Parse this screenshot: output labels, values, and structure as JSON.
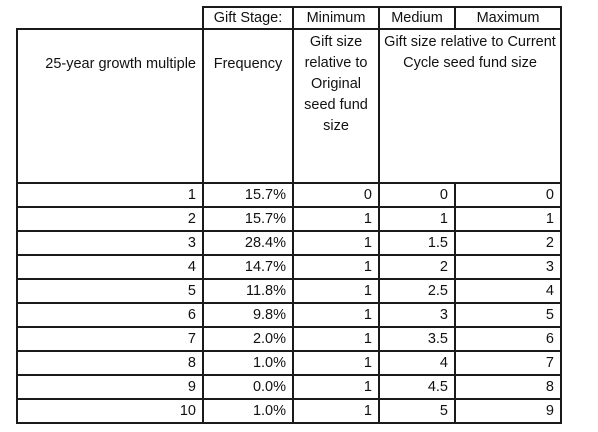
{
  "header": {
    "gift_stage": "Gift Stage:",
    "minimum": "Minimum",
    "medium": "Medium",
    "maximum": "Maximum",
    "col_multiple": "25-year growth multiple",
    "col_frequency": "Frequency",
    "col_min_desc": "Gift size relative to Original seed fund size",
    "col_medmax_desc": "Gift size relative to Current Cycle seed fund size"
  },
  "rows": [
    {
      "multiple": "1",
      "frequency": "15.7%",
      "min": "0",
      "med": "0",
      "max": "0"
    },
    {
      "multiple": "2",
      "frequency": "15.7%",
      "min": "1",
      "med": "1",
      "max": "1"
    },
    {
      "multiple": "3",
      "frequency": "28.4%",
      "min": "1",
      "med": "1.5",
      "max": "2"
    },
    {
      "multiple": "4",
      "frequency": "14.7%",
      "min": "1",
      "med": "2",
      "max": "3"
    },
    {
      "multiple": "5",
      "frequency": "11.8%",
      "min": "1",
      "med": "2.5",
      "max": "4"
    },
    {
      "multiple": "6",
      "frequency": "9.8%",
      "min": "1",
      "med": "3",
      "max": "5"
    },
    {
      "multiple": "7",
      "frequency": "2.0%",
      "min": "1",
      "med": "3.5",
      "max": "6"
    },
    {
      "multiple": "8",
      "frequency": "1.0%",
      "min": "1",
      "med": "4",
      "max": "7"
    },
    {
      "multiple": "9",
      "frequency": "0.0%",
      "min": "1",
      "med": "4.5",
      "max": "8"
    },
    {
      "multiple": "10",
      "frequency": "1.0%",
      "min": "1",
      "med": "5",
      "max": "9"
    }
  ]
}
